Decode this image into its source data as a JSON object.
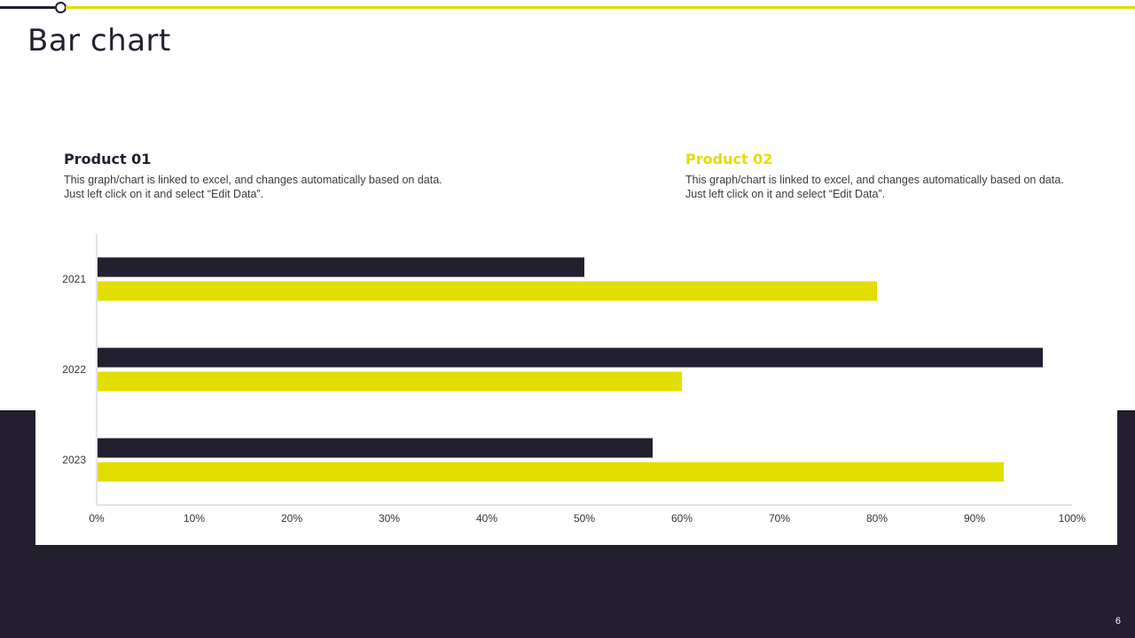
{
  "title": "Bar chart",
  "page_number": "6",
  "legend": [
    {
      "name": "Product 01",
      "description": "This graph/chart is linked to excel, and changes automatically based on data. Just left click on it and select “Edit Data”."
    },
    {
      "name": "Product 02",
      "description": "This graph/chart is linked to excel, and changes automatically based on data. Just left click on it and select “Edit Data”."
    }
  ],
  "colors": {
    "dark": "#231f2f",
    "accent": "#e3dd00",
    "background": "#ffffff"
  },
  "chart_data": {
    "type": "bar",
    "orientation": "horizontal",
    "categories": [
      "2021",
      "2022",
      "2023"
    ],
    "series": [
      {
        "name": "Product 01",
        "values": [
          50,
          97,
          57
        ]
      },
      {
        "name": "Product 02",
        "values": [
          80,
          60,
          93
        ]
      }
    ],
    "xlim": [
      0,
      100
    ],
    "x_ticks": [
      "0%",
      "10%",
      "20%",
      "30%",
      "40%",
      "50%",
      "60%",
      "70%",
      "80%",
      "90%",
      "100%"
    ],
    "value_unit": "%",
    "grid": false,
    "legend_position": "top"
  }
}
